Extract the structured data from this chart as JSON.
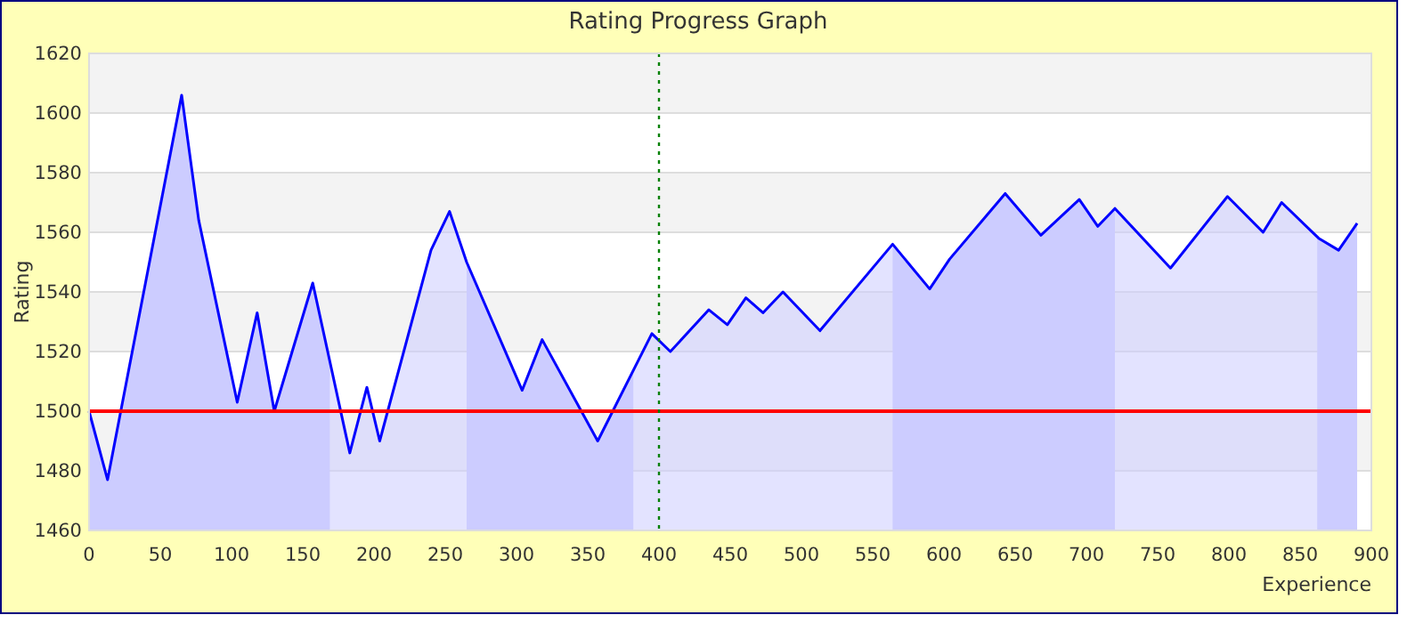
{
  "chart_data": {
    "type": "area",
    "title": "Rating Progress Graph",
    "xlabel": "Experience",
    "ylabel": "Rating",
    "series": [
      {
        "color": "#0000ff",
        "x": [
          0,
          13,
          65,
          77,
          104,
          118,
          130,
          157,
          183,
          195,
          204,
          240,
          253,
          265,
          304,
          318,
          357,
          395,
          408,
          435,
          448,
          461,
          473,
          487,
          513,
          564,
          590,
          604,
          643,
          668,
          695,
          708,
          720,
          759,
          799,
          824,
          837,
          863,
          877,
          890
        ],
        "values": [
          1500,
          1477,
          1606,
          1564,
          1503,
          1533,
          1500,
          1543,
          1486,
          1508,
          1490,
          1554,
          1567,
          1550,
          1507,
          1524,
          1490,
          1526,
          1520,
          1534,
          1529,
          1538,
          1533,
          1540,
          1527,
          1556,
          1541,
          1551,
          1573,
          1559,
          1571,
          1562,
          1568,
          1548,
          1572,
          1560,
          1570,
          1558,
          1554,
          1563
        ]
      }
    ],
    "xlim": [
      0,
      900
    ],
    "xticks": [
      0,
      50,
      100,
      150,
      200,
      250,
      300,
      350,
      400,
      450,
      500,
      550,
      600,
      650,
      700,
      750,
      800,
      850,
      900
    ],
    "ylim": [
      1460,
      1620
    ],
    "yticks": [
      1460,
      1480,
      1500,
      1520,
      1540,
      1560,
      1580,
      1600,
      1620
    ],
    "grid": "y",
    "ref_lines": [
      {
        "axis": "y",
        "value": 1500,
        "color": "#ff0000",
        "line_style": "solid"
      },
      {
        "axis": "x",
        "value": 400,
        "color": "#008000",
        "line_style": "dotted"
      }
    ],
    "bands": [
      {
        "axis": "x",
        "from": 0,
        "to": 169,
        "color": "#ccccff"
      },
      {
        "axis": "x",
        "from": 265,
        "to": 382,
        "color": "#ccccff"
      },
      {
        "axis": "x",
        "from": 564,
        "to": 720,
        "color": "#ccccff"
      },
      {
        "axis": "x",
        "from": 862,
        "to": 890,
        "color": "#ccccff"
      }
    ]
  }
}
